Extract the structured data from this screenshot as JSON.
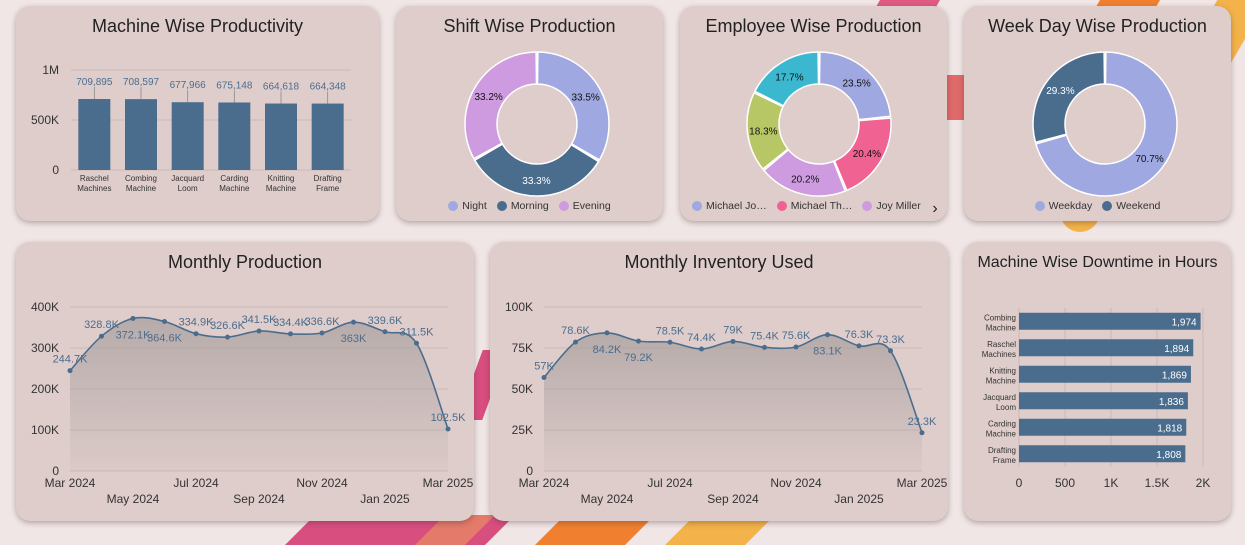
{
  "colors": {
    "bar": "#4a6d8e",
    "line": "#4a6d8e",
    "area": "#c2b5b3",
    "night": "#9fa8e0",
    "morning": "#4a6d8e",
    "evening": "#cf9be0",
    "emp1": "#9fa8e0",
    "emp2": "#f06292",
    "emp3": "#cf9be0",
    "emp4": "#b8c766",
    "emp5": "#3bb8d0",
    "weekday": "#9fa8e0",
    "weekend": "#4a6d8e"
  },
  "cards": {
    "machine_productivity": {
      "title": "Machine Wise Productivity"
    },
    "shift_production": {
      "title": "Shift Wise Production"
    },
    "employee_production": {
      "title": "Employee Wise Production"
    },
    "weekday_production": {
      "title": "Week Day Wise Production"
    },
    "monthly_production": {
      "title": "Monthly Production"
    },
    "monthly_inventory": {
      "title": "Monthly Inventory Used"
    },
    "machine_downtime": {
      "title": "Machine Wise Downtime in Hours"
    }
  },
  "chart_data": [
    {
      "id": "machine_productivity",
      "type": "bar",
      "categories": [
        "Raschel Machines",
        "Combing Machine",
        "Jacquard Loom",
        "Carding Machine",
        "Knitting Machine",
        "Drafting Frame"
      ],
      "category_lines": [
        [
          "Raschel",
          "Machines"
        ],
        [
          "Combing",
          "Machine"
        ],
        [
          "Jacquard",
          "Loom"
        ],
        [
          "Carding",
          "Machine"
        ],
        [
          "Knitting",
          "Machine"
        ],
        [
          "Drafting",
          "Frame"
        ]
      ],
      "values": [
        709895,
        708597,
        677966,
        675148,
        664618,
        664348
      ],
      "labels": [
        "709,895",
        "708,597",
        "677,966",
        "675,148",
        "664,618",
        "664,348"
      ],
      "yticks": [
        "0",
        "500K",
        "1M"
      ],
      "ylim": [
        0,
        1000000
      ],
      "grid": true
    },
    {
      "id": "shift_production",
      "type": "pie",
      "donut": true,
      "legend": [
        "Night",
        "Morning",
        "Evening"
      ],
      "slices": [
        {
          "name": "Night",
          "value": 33.5,
          "label": "33.5%",
          "color_key": "night"
        },
        {
          "name": "Morning",
          "value": 33.3,
          "label": "33.3%",
          "color_key": "morning"
        },
        {
          "name": "Evening",
          "value": 33.2,
          "label": "33.2%",
          "color_key": "evening"
        }
      ],
      "legend_placement": "bottom"
    },
    {
      "id": "employee_production",
      "type": "pie",
      "donut": true,
      "legend": [
        "Michael Jo…",
        "Michael Th…",
        "Joy Miller"
      ],
      "slices": [
        {
          "value": 23.5,
          "label": "23.5%",
          "color_key": "emp1"
        },
        {
          "value": 20.4,
          "label": "20.4%",
          "color_key": "emp2"
        },
        {
          "value": 20.2,
          "label": "20.2%",
          "color_key": "emp3"
        },
        {
          "value": 18.3,
          "label": "18.3%",
          "color_key": "emp4"
        },
        {
          "value": 17.7,
          "label": "17.7%",
          "color_key": "emp5"
        }
      ],
      "legend_placement": "bottom"
    },
    {
      "id": "weekday_production",
      "type": "pie",
      "donut": true,
      "legend": [
        "Weekday",
        "Weekend"
      ],
      "slices": [
        {
          "name": "Weekday",
          "value": 70.7,
          "label": "70.7%",
          "color_key": "weekday"
        },
        {
          "name": "Weekend",
          "value": 29.3,
          "label": "29.3%",
          "color_key": "weekend"
        }
      ],
      "legend_placement": "bottom"
    },
    {
      "id": "monthly_production",
      "type": "area",
      "x": [
        "2024-03",
        "2024-04",
        "2024-05",
        "2024-06",
        "2024-07",
        "2024-08",
        "2024-09",
        "2024-10",
        "2024-11",
        "2024-12",
        "2025-01",
        "2025-02",
        "2025-03"
      ],
      "values": [
        244700,
        328800,
        372100,
        364600,
        334900,
        326600,
        341500,
        334400,
        336600,
        363000,
        339600,
        311500,
        102500
      ],
      "labels": [
        "244.7K",
        "328.8K",
        "372.1K",
        "364.6K",
        "334.9K",
        "326.6K",
        "341.5K",
        "334.4K",
        "336.6K",
        "363K",
        "339.6K",
        "311.5K",
        "102.5K"
      ],
      "yticks": [
        "0",
        "100K",
        "200K",
        "300K",
        "400K"
      ],
      "ylim": [
        0,
        400000
      ],
      "xticks_top": [
        "Mar 2024",
        "Jul 2024",
        "Nov 2024",
        "Mar 2025"
      ],
      "xticks_bottom": [
        "May 2024",
        "Sep 2024",
        "Jan 2025"
      ],
      "grid": true
    },
    {
      "id": "monthly_inventory",
      "type": "area",
      "x": [
        "2024-03",
        "2024-04",
        "2024-05",
        "2024-06",
        "2024-07",
        "2024-08",
        "2024-09",
        "2024-10",
        "2024-11",
        "2024-12",
        "2025-01",
        "2025-02",
        "2025-03"
      ],
      "values": [
        57000,
        78600,
        84200,
        79200,
        78500,
        74400,
        79000,
        75400,
        75600,
        83100,
        76300,
        73300,
        23300
      ],
      "labels": [
        "57K",
        "78.6K",
        "84.2K",
        "79.2K",
        "78.5K",
        "74.4K",
        "79K",
        "75.4K",
        "75.6K",
        "83.1K",
        "76.3K",
        "73.3K",
        "23.3K"
      ],
      "yticks": [
        "0",
        "25K",
        "50K",
        "75K",
        "100K"
      ],
      "ylim": [
        0,
        100000
      ],
      "xticks_top": [
        "Mar 2024",
        "Jul 2024",
        "Nov 2024",
        "Mar 2025"
      ],
      "xticks_bottom": [
        "May 2024",
        "Sep 2024",
        "Jan 2025"
      ],
      "grid": true
    },
    {
      "id": "machine_downtime",
      "type": "bar",
      "orientation": "horizontal",
      "categories": [
        "Combing Machine",
        "Raschel Machines",
        "Knitting Machine",
        "Jacquard Loom",
        "Carding Machine",
        "Drafting Frame"
      ],
      "category_lines": [
        [
          "Combing",
          "Machine"
        ],
        [
          "Raschel",
          "Machines"
        ],
        [
          "Knitting",
          "Machine"
        ],
        [
          "Jacquard",
          "Loom"
        ],
        [
          "Carding",
          "Machine"
        ],
        [
          "Drafting",
          "Frame"
        ]
      ],
      "values": [
        1974,
        1894,
        1869,
        1836,
        1818,
        1808
      ],
      "labels": [
        "1,974",
        "1,894",
        "1,869",
        "1,836",
        "1,818",
        "1,808"
      ],
      "xticks": [
        "0",
        "500",
        "1K",
        "1.5K",
        "2K"
      ],
      "xlim": [
        0,
        2000
      ],
      "grid": true
    }
  ]
}
